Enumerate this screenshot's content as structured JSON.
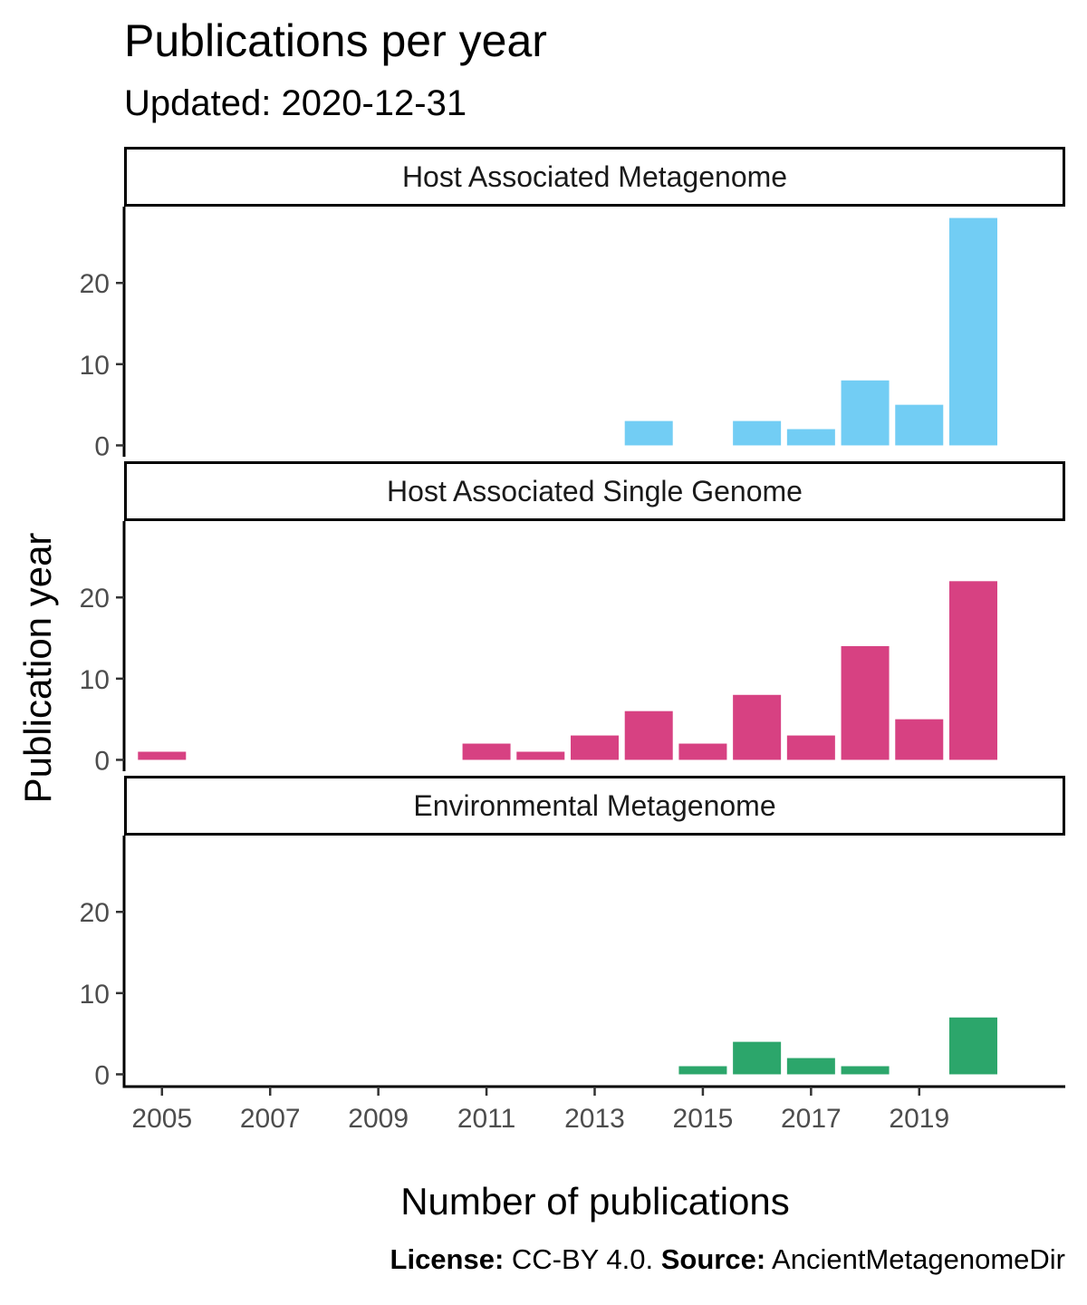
{
  "chart_data": {
    "type": "bar",
    "title": "Publications per year",
    "subtitle": "Updated: 2020-12-31",
    "xlabel": "Number of publications",
    "ylabel": "Publication year",
    "x_ticks": [
      2005,
      2007,
      2009,
      2011,
      2013,
      2015,
      2017,
      2019
    ],
    "xlim": [
      2004.3,
      2021.7
    ],
    "y_ticks": [
      0,
      10,
      20
    ],
    "ylim": [
      -1.4,
      29.4
    ],
    "facets": [
      {
        "label": "Host Associated Metagenome",
        "color": "#72CDF4",
        "x": [
          2014,
          2016,
          2017,
          2018,
          2019,
          2020
        ],
        "values": [
          3,
          3,
          2,
          8,
          5,
          28
        ]
      },
      {
        "label": "Host Associated Single Genome",
        "color": "#D74182",
        "x": [
          2005,
          2011,
          2012,
          2013,
          2014,
          2015,
          2016,
          2017,
          2018,
          2019,
          2020
        ],
        "values": [
          1,
          2,
          1,
          3,
          6,
          2,
          8,
          3,
          14,
          5,
          22
        ]
      },
      {
        "label": "Environmental Metagenome",
        "color": "#2CA66B",
        "x": [
          2015,
          2016,
          2017,
          2018,
          2020
        ],
        "values": [
          1,
          4,
          2,
          1,
          7
        ]
      }
    ]
  },
  "caption": {
    "license_label": "License:",
    "license_value": " CC-BY 4.0. ",
    "source_label": "Source:",
    "source_value": " AncientMetagenomeDir"
  }
}
